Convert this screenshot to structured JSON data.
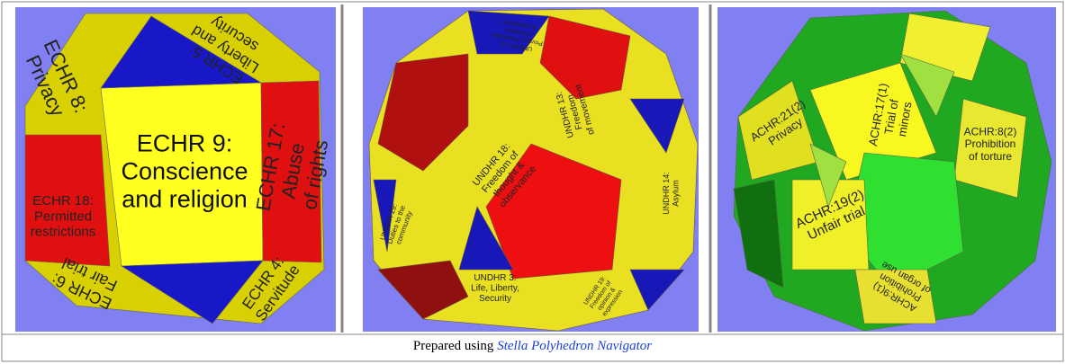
{
  "cells": [
    {
      "labels": [
        [
          "ECHR 8:",
          "Privacy"
        ],
        [
          "ECHR 5:",
          "Liberty and",
          "security"
        ],
        [
          "ECHR 18:",
          "Permitted",
          "restrictions"
        ],
        [
          "ECHR 9:",
          "Conscience",
          "and religion"
        ],
        [
          "ECHR 17:",
          "Abuse",
          "of rights"
        ],
        [
          "ECHR 6:",
          "Fair trial"
        ],
        [
          "ECHR 4:",
          "Servitude"
        ]
      ]
    },
    {
      "labels": [
        [
          "UNDHR 12:",
          "Privacy, Protection",
          "of honour",
          "& reputation"
        ],
        [
          "UNDHR 13:",
          "Freedom",
          "of movement"
        ],
        [
          "UNDHR 18:",
          "Freedom of",
          "thought &",
          "observance"
        ],
        [
          "UNDHR 14:",
          "Asylum"
        ],
        [
          "UNDHR 29:",
          "Duties to the",
          "community"
        ],
        [
          "UNDHR 3:",
          "Life, Liberty,",
          "Security"
        ],
        [
          "UNDHR 19:",
          "Freedom of",
          "opinion &",
          "expression"
        ]
      ]
    },
    {
      "labels": [
        [
          "ACHR:21(2)",
          "Privacy"
        ],
        [
          "ACHR:17(1)",
          "Trial of",
          "minors"
        ],
        [
          "ACHR:8(2)",
          "Prohibition",
          "of torture"
        ],
        [
          "ACHR:19(2)",
          "Unfair trial"
        ],
        [
          "ACHR:9(1)",
          "Prohibition",
          "of organ use"
        ]
      ]
    }
  ],
  "caption": {
    "text": "Prepared using",
    "link": "Stella Polyhedron Navigator"
  }
}
